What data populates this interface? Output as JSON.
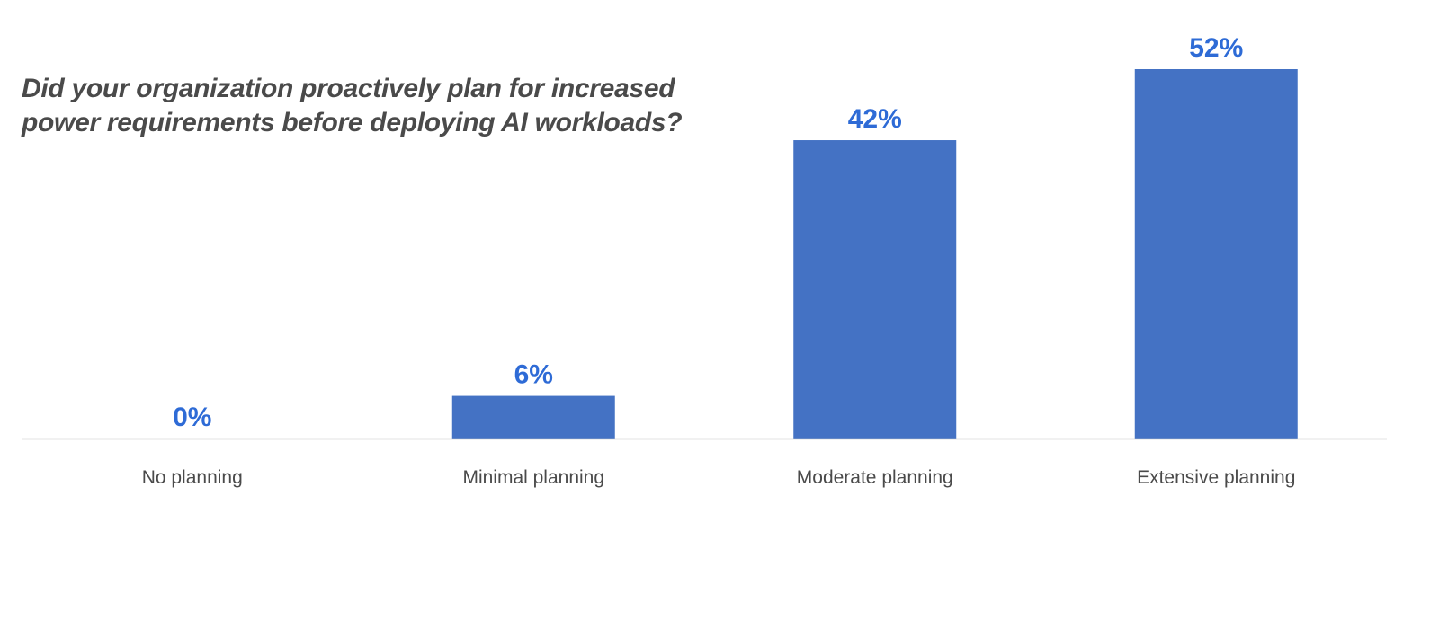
{
  "chart_data": {
    "type": "bar",
    "title": "Did your organization proactively plan for increased power requirements before deploying AI workloads?",
    "categories": [
      "No planning",
      "Minimal planning",
      "Moderate planning",
      "Extensive planning"
    ],
    "values": [
      0,
      6,
      42,
      52
    ],
    "value_labels": [
      "0%",
      "6%",
      "42%",
      "52%"
    ],
    "ylim": [
      0,
      52
    ],
    "grid": false,
    "legend": "none",
    "colors": {
      "bar": "#4472C4",
      "data_label": "#2E6BD6",
      "category_label": "#4a4a4a",
      "axis_line": "#c8c8c8",
      "title": "#4a4a4a"
    }
  }
}
